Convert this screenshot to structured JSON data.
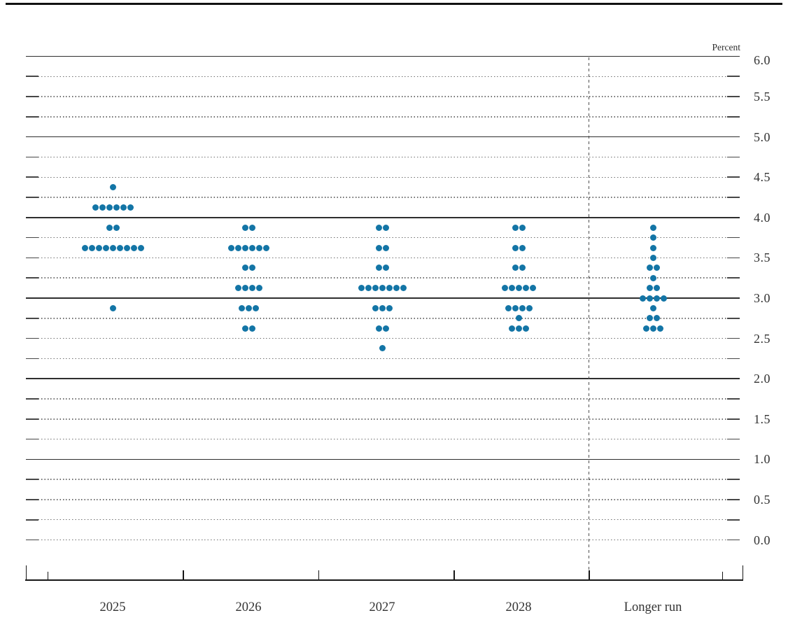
{
  "header": {
    "percent_label": "Percent"
  },
  "chart_data": {
    "type": "scatter",
    "subtype": "fomc-dot-plot",
    "unit_label": "Percent",
    "categories": [
      "2025",
      "2026",
      "2027",
      "2028",
      "Longer run"
    ],
    "ylim": [
      0.0,
      6.0
    ],
    "y_tick_labels": [
      "6.0",
      "5.5",
      "5.0",
      "4.5",
      "4.0",
      "3.5",
      "3.0",
      "2.5",
      "2.0",
      "1.5",
      "1.0",
      "0.5",
      "0.0"
    ],
    "minor_gridline_step": 0.25,
    "solid_gridlines_at": [
      6.0,
      5.0,
      4.0,
      3.0,
      2.0,
      1.0
    ],
    "grid": true,
    "legend_position": "none",
    "dot_color": "#1375a6",
    "series": [
      {
        "name": "2025",
        "dots": [
          {
            "rate": 4.375,
            "count": 1
          },
          {
            "rate": 4.125,
            "count": 6
          },
          {
            "rate": 3.875,
            "count": 2
          },
          {
            "rate": 3.625,
            "count": 9
          },
          {
            "rate": 2.875,
            "count": 1
          }
        ]
      },
      {
        "name": "2026",
        "dots": [
          {
            "rate": 3.875,
            "count": 2
          },
          {
            "rate": 3.625,
            "count": 6
          },
          {
            "rate": 3.375,
            "count": 2
          },
          {
            "rate": 3.125,
            "count": 4
          },
          {
            "rate": 2.875,
            "count": 3
          },
          {
            "rate": 2.625,
            "count": 2
          }
        ]
      },
      {
        "name": "2027",
        "dots": [
          {
            "rate": 3.875,
            "count": 2
          },
          {
            "rate": 3.625,
            "count": 2
          },
          {
            "rate": 3.375,
            "count": 2
          },
          {
            "rate": 3.125,
            "count": 7
          },
          {
            "rate": 2.875,
            "count": 3
          },
          {
            "rate": 2.625,
            "count": 2
          },
          {
            "rate": 2.375,
            "count": 1
          }
        ]
      },
      {
        "name": "2028",
        "dots": [
          {
            "rate": 3.875,
            "count": 2
          },
          {
            "rate": 3.625,
            "count": 2
          },
          {
            "rate": 3.375,
            "count": 2
          },
          {
            "rate": 3.125,
            "count": 5
          },
          {
            "rate": 2.875,
            "count": 4
          },
          {
            "rate": 2.75,
            "count": 1
          },
          {
            "rate": 2.625,
            "count": 3
          }
        ]
      },
      {
        "name": "Longer run",
        "dots": [
          {
            "rate": 3.875,
            "count": 1
          },
          {
            "rate": 3.75,
            "count": 1
          },
          {
            "rate": 3.625,
            "count": 1
          },
          {
            "rate": 3.5,
            "count": 1
          },
          {
            "rate": 3.375,
            "count": 2
          },
          {
            "rate": 3.25,
            "count": 1
          },
          {
            "rate": 3.125,
            "count": 2
          },
          {
            "rate": 3.0,
            "count": 4
          },
          {
            "rate": 2.875,
            "count": 1
          },
          {
            "rate": 2.75,
            "count": 2
          },
          {
            "rate": 2.625,
            "count": 3
          }
        ]
      }
    ]
  }
}
